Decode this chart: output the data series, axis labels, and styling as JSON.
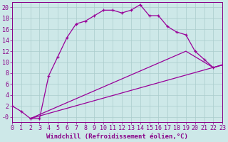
{
  "xlabel": "Windchill (Refroidissement éolien,°C)",
  "background_color": "#cde8e8",
  "grid_color": "#aacccc",
  "line_color": "#990099",
  "xlim": [
    0,
    23
  ],
  "ylim": [
    -1,
    21
  ],
  "xticks": [
    0,
    1,
    2,
    3,
    4,
    5,
    6,
    7,
    8,
    9,
    10,
    11,
    12,
    13,
    14,
    15,
    16,
    17,
    18,
    19,
    20,
    21,
    22,
    23
  ],
  "yticks": [
    0,
    2,
    4,
    6,
    8,
    10,
    12,
    14,
    16,
    18,
    20
  ],
  "ytick_labels": [
    "-0",
    "2",
    "4",
    "6",
    "8",
    "10",
    "12",
    "14",
    "16",
    "18",
    "20"
  ],
  "line1_x": [
    0,
    1,
    2,
    3,
    4,
    5,
    6,
    7,
    8,
    9,
    10,
    11,
    12,
    13,
    14,
    15,
    16,
    17,
    18,
    19,
    20,
    21,
    22,
    23
  ],
  "line1_y": [
    2.0,
    1.0,
    -0.3,
    -0.3,
    7.5,
    11.0,
    14.5,
    17.0,
    17.5,
    18.5,
    19.5,
    19.5,
    19.0,
    19.5,
    20.5,
    18.5,
    18.5,
    16.5,
    15.5,
    15.0,
    12.0,
    10.5,
    9.0,
    9.5
  ],
  "line2_x": [
    2,
    23
  ],
  "line2_y": [
    -0.3,
    9.5
  ],
  "line3_x": [
    2,
    19,
    22,
    23
  ],
  "line3_y": [
    -0.3,
    12.0,
    9.0,
    9.5
  ],
  "font_color": "#880088",
  "font_size_label": 6.5,
  "font_size_tick": 6.0
}
